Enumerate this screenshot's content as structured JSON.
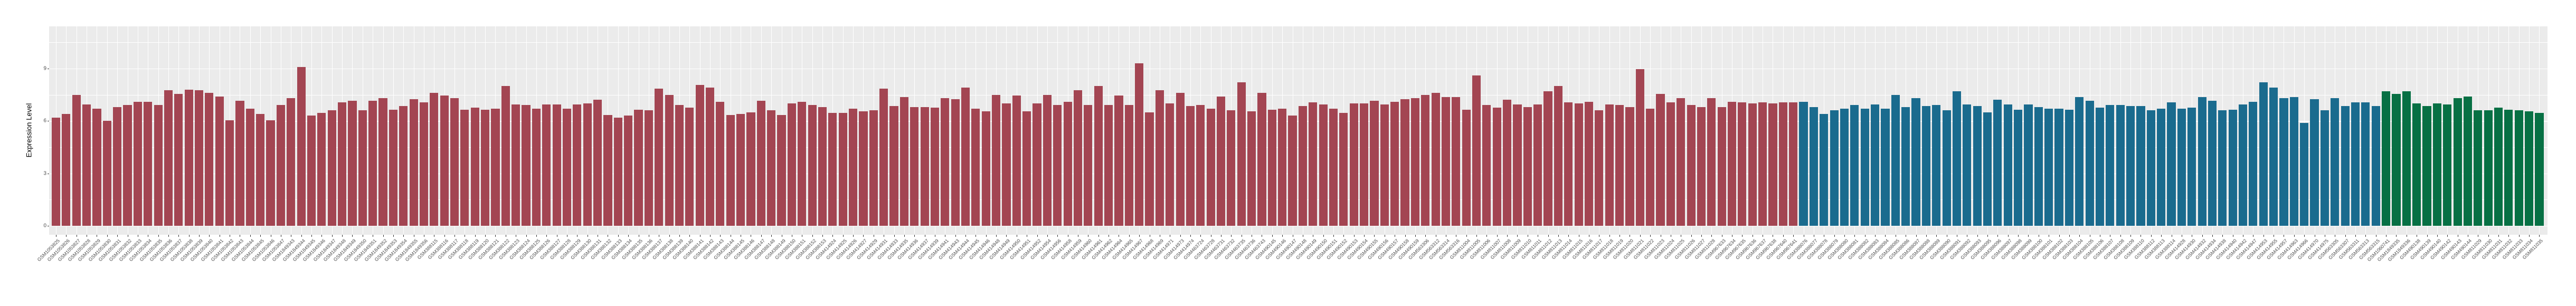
{
  "chart_data": {
    "type": "bar",
    "title": "",
    "xlabel": "",
    "ylabel": "Expression Level",
    "yticks": [
      0,
      3,
      6,
      9
    ],
    "ylim": [
      0,
      11.4
    ],
    "grid": "on",
    "legend": "none",
    "panel_background": "#EBEBEB",
    "grid_color": "#FFFFFF",
    "axis_text_color": "#4d4d4d",
    "groups": [
      {
        "name": "group-1-red",
        "color": "#A34552",
        "start_index": 0,
        "count": 171
      },
      {
        "name": "group-2-blue",
        "color": "#1A6B8E",
        "start_index": 171,
        "count": 57
      },
      {
        "name": "group-3-green",
        "color": "#077044",
        "start_index": 228,
        "count": 16
      }
    ],
    "categories": [
      "GSM1053825",
      "GSM1053826",
      "GSM1053827",
      "GSM1053828",
      "GSM1053829",
      "GSM1053830",
      "GSM1053831",
      "GSM1053832",
      "GSM1053833",
      "GSM1053834",
      "GSM1053835",
      "GSM1053836",
      "GSM1053837",
      "GSM1053838",
      "GSM1053839",
      "GSM1053840",
      "GSM1053841",
      "GSM1053842",
      "GSM1053843",
      "GSM1053844",
      "GSM1053845",
      "GSM1053846",
      "GSM1053847",
      "GSM1849343",
      "GSM1849344",
      "GSM1849345",
      "GSM1849346",
      "GSM1849347",
      "GSM1849348",
      "GSM1849349",
      "GSM1849350",
      "GSM1849351",
      "GSM1849352",
      "GSM1849353",
      "GSM1849354",
      "GSM1849355",
      "GSM1849356",
      "GSM388115",
      "GSM388116",
      "GSM388117",
      "GSM388118",
      "GSM388119",
      "GSM388120",
      "GSM388121",
      "GSM388122",
      "GSM388123",
      "GSM388124",
      "GSM388125",
      "GSM388126",
      "GSM388127",
      "GSM388128",
      "GSM388129",
      "GSM388130",
      "GSM388131",
      "GSM388132",
      "GSM388133",
      "GSM388134",
      "GSM388135",
      "GSM388136",
      "GSM388137",
      "GSM388138",
      "GSM388139",
      "GSM388140",
      "GSM388141",
      "GSM388142",
      "GSM388143",
      "GSM388144",
      "GSM388145",
      "GSM388146",
      "GSM388147",
      "GSM388148",
      "GSM388149",
      "GSM388150",
      "GSM388151",
      "GSM388152",
      "GSM388153",
      "GSM414924",
      "GSM414925",
      "GSM414926",
      "GSM414927",
      "GSM414929",
      "GSM414931",
      "GSM414933",
      "GSM414935",
      "GSM414936",
      "GSM414937",
      "GSM414939",
      "GSM414941",
      "GSM414943",
      "GSM414944",
      "GSM414945",
      "GSM414946",
      "GSM414948",
      "GSM414949",
      "GSM414950",
      "GSM414951",
      "GSM414952",
      "GSM414954",
      "GSM414956",
      "GSM414958",
      "GSM414959",
      "GSM414960",
      "GSM414961",
      "GSM414962",
      "GSM414964",
      "GSM414965",
      "GSM414967",
      "GSM414968",
      "GSM414969",
      "GSM414971",
      "GSM414973",
      "GSM414974",
      "GSM463724",
      "GSM463728",
      "GSM463731",
      "GSM463732",
      "GSM463735",
      "GSM463736",
      "GSM463743",
      "GSM490145",
      "GSM490146",
      "GSM490147",
      "GSM490148",
      "GSM490149",
      "GSM490150",
      "GSM490151",
      "GSM490152",
      "GSM490153",
      "GSM490154",
      "GSM490155",
      "GSM490156",
      "GSM490157",
      "GSM490158",
      "GSM490159",
      "GSM563306",
      "GSM563312",
      "GSM563314",
      "GSM563316",
      "GSM811004",
      "GSM811005",
      "GSM811006",
      "GSM811007",
      "GSM811008",
      "GSM811009",
      "GSM811010",
      "GSM811011",
      "GSM811012",
      "GSM811013",
      "GSM811014",
      "GSM811015",
      "GSM811016",
      "GSM811017",
      "GSM811018",
      "GSM811019",
      "GSM811020",
      "GSM811021",
      "GSM811022",
      "GSM811023",
      "GSM811024",
      "GSM811025",
      "GSM811026",
      "GSM811027",
      "GSM811028",
      "GSM967633",
      "GSM967634",
      "GSM967635",
      "GSM967636",
      "GSM967637",
      "GSM967638",
      "GSM967640",
      "GSM967641",
      "GSM388076",
      "GSM388077",
      "GSM388078",
      "GSM388079",
      "GSM388080",
      "GSM388081",
      "GSM388082",
      "GSM388083",
      "GSM388084",
      "GSM388085",
      "GSM388086",
      "GSM388087",
      "GSM388088",
      "GSM388089",
      "GSM388090",
      "GSM388091",
      "GSM388092",
      "GSM388093",
      "GSM388095",
      "GSM388096",
      "GSM388097",
      "GSM388098",
      "GSM388099",
      "GSM388100",
      "GSM388101",
      "GSM388102",
      "GSM388103",
      "GSM388104",
      "GSM388105",
      "GSM388106",
      "GSM388107",
      "GSM388108",
      "GSM388109",
      "GSM388110",
      "GSM388112",
      "GSM388113",
      "GSM388114",
      "GSM414928",
      "GSM414930",
      "GSM414932",
      "GSM414934",
      "GSM414938",
      "GSM414940",
      "GSM414942",
      "GSM414947",
      "GSM414953",
      "GSM414955",
      "GSM414957",
      "GSM414963",
      "GSM414966",
      "GSM414970",
      "GSM414975",
      "GSM563305",
      "GSM563307",
      "GSM563311",
      "GSM563313",
      "GSM563315",
      "GSM1060741",
      "GSM1849335",
      "GSM1849336",
      "GSM490138",
      "GSM490139",
      "GSM490140",
      "GSM490142",
      "GSM490143",
      "GSM490144",
      "GSM811029",
      "GSM811030",
      "GSM811031",
      "GSM811032",
      "GSM811033",
      "GSM811034",
      "GSM811035"
    ],
    "values": [
      6.2,
      6.4,
      7.5,
      6.95,
      6.7,
      6.0,
      6.8,
      6.9,
      7.1,
      7.1,
      6.9,
      7.75,
      7.55,
      7.8,
      7.75,
      7.6,
      7.4,
      6.05,
      7.15,
      6.7,
      6.4,
      6.05,
      6.9,
      7.3,
      9.1,
      6.3,
      6.45,
      6.6,
      7.05,
      7.15,
      6.6,
      7.15,
      7.3,
      6.65,
      6.85,
      7.25,
      7.05,
      7.6,
      7.45,
      7.3,
      6.65,
      6.75,
      6.65,
      6.7,
      8.0,
      6.95,
      6.9,
      6.7,
      6.95,
      6.95,
      6.7,
      6.95,
      7.0,
      7.2,
      6.35,
      6.2,
      6.3,
      6.65,
      6.6,
      7.85,
      7.5,
      6.9,
      6.75,
      8.05,
      7.9,
      7.1,
      6.35,
      6.4,
      6.5,
      7.15,
      6.6,
      6.35,
      7.0,
      7.1,
      6.9,
      6.8,
      6.45,
      6.45,
      6.7,
      6.55,
      6.6,
      7.85,
      6.85,
      7.35,
      6.8,
      6.8,
      6.75,
      7.3,
      7.25,
      7.9,
      6.7,
      6.55,
      7.5,
      7.0,
      7.45,
      6.55,
      7.0,
      7.5,
      6.9,
      7.1,
      7.75,
      6.9,
      8.0,
      6.9,
      7.45,
      6.9,
      9.3,
      6.5,
      7.75,
      7.0,
      7.6,
      6.85,
      6.9,
      6.7,
      7.4,
      6.6,
      8.2,
      6.55,
      7.6,
      6.65,
      6.7,
      6.3,
      6.85,
      7.05,
      6.95,
      6.7,
      6.45,
      7.0,
      7.0,
      7.15,
      6.95,
      7.1,
      7.25,
      7.3,
      7.5,
      7.6,
      7.35,
      7.35,
      6.65,
      8.6,
      6.9,
      6.75,
      7.2,
      6.95,
      6.8,
      6.95,
      7.7,
      8.0,
      7.05,
      7.0,
      7.1,
      6.6,
      6.95,
      6.9,
      6.8,
      8.95,
      6.7,
      7.55,
      7.05,
      7.3,
      6.9,
      6.8,
      7.3,
      6.8,
      7.1,
      7.05,
      7.0,
      7.05,
      7.0,
      7.05,
      7.05,
      7.1,
      6.8,
      6.4,
      6.6,
      6.7,
      6.9,
      6.7,
      6.95,
      6.7,
      7.5,
      6.8,
      7.3,
      6.85,
      6.9,
      6.6,
      7.7,
      6.95,
      6.85,
      6.5,
      7.2,
      6.95,
      6.65,
      6.95,
      6.8,
      6.7,
      6.7,
      6.65,
      7.35,
      7.15,
      6.75,
      6.9,
      6.9,
      6.85,
      6.85,
      6.6,
      6.7,
      7.05,
      6.7,
      6.75,
      7.35,
      7.15,
      6.6,
      6.65,
      6.95,
      7.1,
      8.2,
      7.9,
      7.3,
      7.35,
      5.9,
      7.25,
      6.6,
      7.3,
      6.85,
      7.05,
      7.05,
      6.85,
      7.7,
      7.55,
      7.7,
      7.0,
      6.85,
      7.0,
      6.95,
      7.3,
      7.4,
      6.6,
      6.6,
      6.75,
      6.65,
      6.6,
      6.55,
      6.45
    ]
  }
}
